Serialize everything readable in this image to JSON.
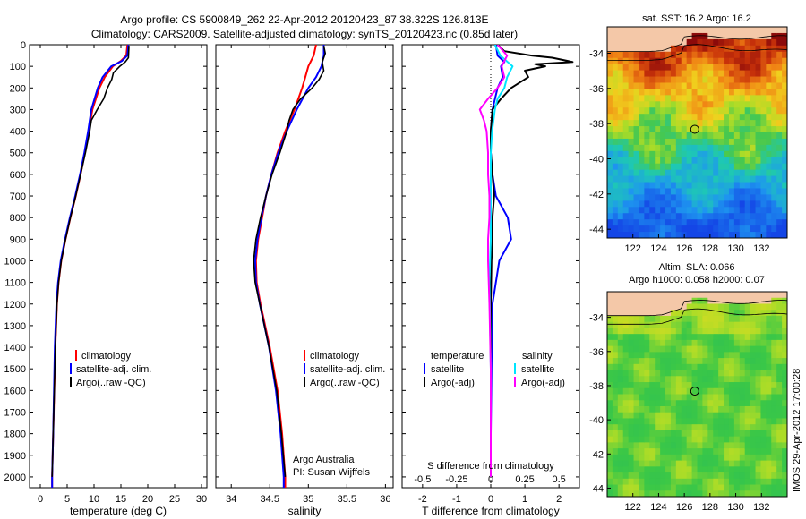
{
  "header": {
    "title_line1": "Argo profile: CS 5900849_262 22-Apr-2012 20120423_87 38.322S 126.813E",
    "title_line2": "Climatology: CARS2009. Satellite-adjusted climatology: synTS_20120423.nc (0.85d later)"
  },
  "colors": {
    "climatology": "#ff0000",
    "satellite": "#0000ff",
    "argo": "#000000",
    "sal_satellite": "#00e5ff",
    "sal_argo": "#ff00ff",
    "land": "#f4c8a8"
  },
  "chart_data": [
    {
      "type": "line",
      "ylabel": "",
      "xlabel": "temperature (deg C)",
      "xlim": [
        -2,
        31
      ],
      "ylim": [
        0,
        2050
      ],
      "xticks": [
        0,
        5,
        10,
        15,
        20,
        25,
        30
      ],
      "yticks": [
        0,
        100,
        200,
        300,
        400,
        500,
        600,
        700,
        800,
        900,
        1000,
        1100,
        1200,
        1300,
        1400,
        1500,
        1600,
        1700,
        1800,
        1900,
        2000
      ],
      "legend": [
        "climatology",
        "satellite-adj. clim.",
        "Argo(..raw -QC)"
      ],
      "legend_position": "lower-center",
      "series": [
        {
          "name": "climatology",
          "depth": [
            0,
            50,
            75,
            100,
            150,
            200,
            300,
            400,
            500,
            600,
            700,
            800,
            900,
            1000,
            1100,
            1200,
            1400,
            1600,
            1800,
            2000,
            2050
          ],
          "values": [
            16.2,
            16.0,
            15.0,
            13.5,
            12.0,
            11.0,
            9.7,
            9.0,
            8.3,
            7.5,
            6.6,
            5.6,
            4.7,
            3.9,
            3.4,
            3.1,
            2.8,
            2.6,
            2.4,
            2.2,
            2.2
          ]
        },
        {
          "name": "satellite-adj. clim.",
          "depth": [
            0,
            50,
            75,
            100,
            150,
            200,
            300,
            400,
            500,
            600,
            700,
            800,
            900,
            1000,
            1100,
            1200,
            1400,
            1600,
            1800,
            2000,
            2050
          ],
          "values": [
            16.4,
            16.2,
            15.2,
            13.2,
            11.6,
            10.7,
            9.5,
            8.9,
            8.2,
            7.4,
            6.5,
            5.5,
            4.6,
            3.8,
            3.3,
            3.0,
            2.7,
            2.55,
            2.4,
            2.2,
            2.2
          ]
        },
        {
          "name": "Argo(..raw -QC)",
          "depth": [
            5,
            60,
            80,
            100,
            130,
            160,
            200,
            250,
            300,
            350,
            400,
            500,
            600,
            700,
            800,
            900,
            1000,
            1100,
            1200,
            1400,
            1600,
            1800,
            2000
          ],
          "values": [
            16.5,
            16.4,
            15.8,
            14.8,
            13.6,
            13.3,
            12.5,
            11.8,
            10.6,
            9.5,
            9.2,
            8.4,
            7.5,
            6.6,
            5.6,
            4.7,
            3.9,
            3.4,
            3.1,
            2.8,
            2.6,
            2.4,
            2.2
          ]
        }
      ]
    },
    {
      "type": "line",
      "xlabel": "salinity",
      "xlim": [
        33.8,
        36.1
      ],
      "ylim": [
        0,
        2050
      ],
      "xticks": [
        34,
        34.5,
        35,
        35.5,
        36
      ],
      "xticklabels": [
        "34",
        "34.5",
        "35",
        "35.5",
        "36"
      ],
      "legend": [
        "climatology",
        "satellite-adj. clim.",
        "Argo(..raw -QC)"
      ],
      "legend_position": "lower-right",
      "annotations": [
        "Argo Australia",
        "PI: Susan Wijffels"
      ],
      "series": [
        {
          "name": "climatology",
          "depth": [
            0,
            50,
            100,
            150,
            200,
            300,
            400,
            500,
            600,
            700,
            800,
            900,
            1000,
            1100,
            1200,
            1400,
            1600,
            1800,
            2000,
            2050
          ],
          "values": [
            35.1,
            35.07,
            35.0,
            34.96,
            34.92,
            34.82,
            34.7,
            34.6,
            34.52,
            34.45,
            34.4,
            34.35,
            34.32,
            34.33,
            34.38,
            34.5,
            34.6,
            34.66,
            34.7,
            34.7
          ]
        },
        {
          "name": "satellite-adj. clim.",
          "depth": [
            0,
            50,
            100,
            150,
            200,
            300,
            400,
            500,
            600,
            700,
            800,
            900,
            1000,
            1100,
            1200,
            1400,
            1600,
            1800,
            2000,
            2050
          ],
          "values": [
            35.2,
            35.2,
            35.17,
            35.1,
            35.0,
            34.85,
            34.72,
            34.61,
            34.52,
            34.45,
            34.39,
            34.34,
            34.31,
            34.32,
            34.37,
            34.49,
            34.58,
            34.64,
            34.68,
            34.68
          ]
        },
        {
          "name": "Argo(..raw -QC)",
          "depth": [
            5,
            40,
            80,
            120,
            160,
            200,
            250,
            300,
            350,
            400,
            500,
            600,
            700,
            800,
            900,
            1000,
            1100,
            1200,
            1400,
            1600,
            1800,
            2000
          ],
          "values": [
            35.2,
            35.22,
            35.18,
            35.2,
            35.14,
            35.05,
            34.9,
            34.8,
            34.75,
            34.72,
            34.63,
            34.53,
            34.45,
            34.38,
            34.32,
            34.29,
            34.31,
            34.37,
            34.49,
            34.59,
            34.65,
            34.7
          ]
        }
      ]
    },
    {
      "type": "line",
      "xlabel": "T difference from climatology",
      "xlabel_top": "S difference from climatology",
      "xlim": [
        -2.6,
        2.6
      ],
      "ylim": [
        0,
        2050
      ],
      "xticks": [
        -2,
        -1,
        0,
        1,
        2
      ],
      "xticks_top": [
        -0.5,
        -0.25,
        0,
        0.25,
        0.5
      ],
      "legend_temperature_title": "temperature",
      "legend_salinity_title": "salinity",
      "legend": [
        "satellite",
        "Argo(-adj)",
        "satellite",
        "Argo(-adj)"
      ],
      "series": [
        {
          "name": "satellite",
          "group": "temperature",
          "depth": [
            0,
            50,
            80,
            100,
            150,
            200,
            300,
            400,
            500,
            600,
            700,
            800,
            900,
            1000,
            1200,
            1500,
            1800,
            2000
          ],
          "values": [
            0.15,
            0.2,
            0.4,
            0.3,
            0.35,
            0.2,
            0.05,
            0.0,
            0.0,
            0.05,
            0.15,
            0.5,
            0.6,
            0.25,
            0.05,
            0.02,
            0.0,
            0.0
          ]
        },
        {
          "name": "Argo(-adj)",
          "group": "temperature",
          "depth": [
            0,
            30,
            50,
            60,
            70,
            80,
            90,
            100,
            120,
            150,
            200,
            250,
            300,
            400,
            500,
            600,
            700,
            800,
            900,
            1000,
            1200,
            1500,
            1800,
            2000
          ],
          "values": [
            0.2,
            0.4,
            1.2,
            1.8,
            2.1,
            2.4,
            1.3,
            1.6,
            1.0,
            1.1,
            0.6,
            0.3,
            0.05,
            0.0,
            0.0,
            0.05,
            0.1,
            0.05,
            0.05,
            0.02,
            0.0,
            0.0,
            0.0,
            0.0
          ]
        },
        {
          "name": "satellite",
          "group": "salinity",
          "depth": [
            0,
            50,
            100,
            150,
            200,
            250,
            300,
            400,
            500,
            700,
            900,
            1100,
            1500,
            1800,
            2000
          ],
          "values": [
            0.03,
            0.07,
            0.16,
            0.12,
            0.1,
            0.05,
            0.03,
            0.01,
            0.0,
            0.0,
            0.0,
            -0.01,
            0.0,
            0.0,
            0.0
          ]
        },
        {
          "name": "Argo(-adj)",
          "group": "salinity",
          "depth": [
            0,
            50,
            100,
            150,
            200,
            250,
            300,
            350,
            400,
            500,
            600,
            700,
            800,
            900,
            1000,
            1200,
            1500,
            1800,
            2000
          ],
          "values": [
            0.05,
            0.12,
            0.08,
            0.1,
            0.05,
            -0.02,
            -0.08,
            -0.05,
            -0.03,
            -0.02,
            -0.02,
            -0.01,
            -0.01,
            -0.02,
            -0.02,
            -0.01,
            0.0,
            0.0,
            0.0
          ]
        }
      ]
    },
    {
      "type": "heatmap",
      "title": "sat. SST: 16.2 Argo: 16.2",
      "xlim": [
        120,
        134
      ],
      "ylim": [
        -44.5,
        -32.5
      ],
      "xticks": [
        122,
        124,
        126,
        128,
        130,
        132
      ],
      "yticks": [
        -44,
        -42,
        -40,
        -38,
        -36,
        -34
      ],
      "marker": {
        "lon": 126.813,
        "lat": -38.322
      }
    },
    {
      "type": "heatmap",
      "title": "Altim. SLA: 0.066",
      "subtitle": "Argo h1000: 0.058 h2000: 0.07",
      "xlim": [
        120,
        134
      ],
      "ylim": [
        -44.5,
        -32.5
      ],
      "xticks": [
        122,
        124,
        126,
        128,
        130,
        132
      ],
      "yticks": [
        -44,
        -42,
        -40,
        -38,
        -36,
        -34
      ],
      "marker": {
        "lon": 126.813,
        "lat": -38.322
      }
    }
  ],
  "footer": {
    "side_stamp": "IMOS 29-Apr-2012 17:00:28"
  }
}
